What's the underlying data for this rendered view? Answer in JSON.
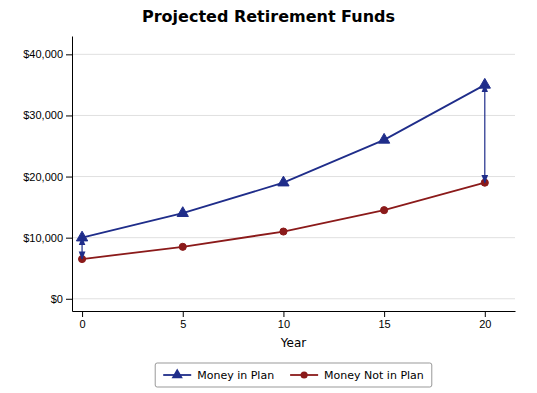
{
  "chart_data": {
    "type": "line",
    "title": "Projected Retirement Funds",
    "x_label": "Year",
    "x": [
      0,
      5,
      10,
      15,
      20
    ],
    "series": [
      {
        "name": "Money in Plan",
        "color": "#1F2D8A",
        "marker": "triangle",
        "line_style": "solid",
        "values": [
          10000,
          14000,
          19000,
          26000,
          35000
        ]
      },
      {
        "name": "Money Not in Plan",
        "color": "#8B1A1A",
        "marker": "circle",
        "line_style": "solid",
        "values": [
          6500,
          8500,
          11000,
          14500,
          19000
        ]
      }
    ],
    "xlim": [
      -0.5,
      21.5
    ],
    "xticks": [
      0,
      5,
      10,
      15,
      20
    ],
    "ylim": [
      -2000,
      43000
    ],
    "yticks": [
      {
        "value": 0,
        "label": "$0"
      },
      {
        "value": 10000,
        "label": "$10,000"
      },
      {
        "value": 20000,
        "label": "$20,000"
      },
      {
        "value": 30000,
        "label": "$30,000"
      },
      {
        "value": 40000,
        "label": "$40,000"
      }
    ],
    "annotations": [
      {
        "type": "arrow",
        "x": 0,
        "y1": 10000,
        "y2": 6500,
        "color": "#1F2D8A"
      },
      {
        "type": "arrow",
        "x": 20,
        "y1": 35000,
        "y2": 19000,
        "color": "#1F2D8A"
      }
    ],
    "grid": true,
    "legend": "bottom"
  }
}
